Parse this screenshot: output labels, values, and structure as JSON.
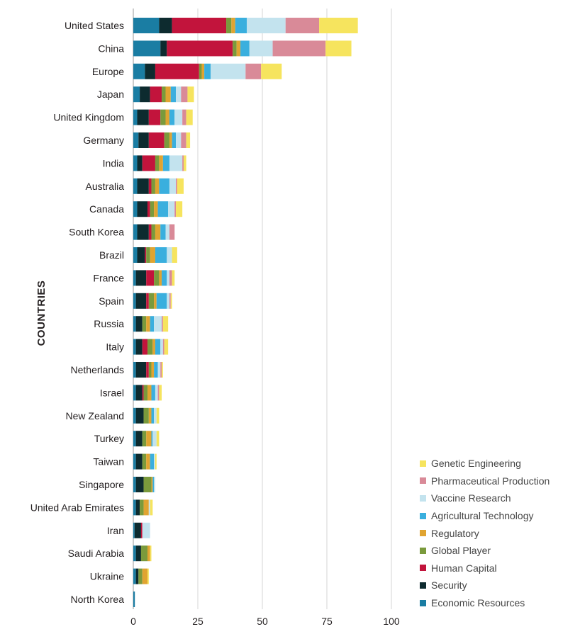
{
  "chart_data": {
    "type": "bar",
    "orientation": "horizontal",
    "stacked": true,
    "title": "",
    "xlabel": "",
    "ylabel": "COUNTRIES",
    "xlim": [
      0,
      100
    ],
    "xticks": [
      0,
      25,
      50,
      75,
      100
    ],
    "grid": true,
    "legend_position": "bottom-right",
    "categories": [
      "United States",
      "China",
      "Europe",
      "Japan",
      "United Kingdom",
      "Germany",
      "India",
      "Australia",
      "Canada",
      "South Korea",
      "Brazil",
      "France",
      "Spain",
      "Russia",
      "Italy",
      "Netherlands",
      "Israel",
      "New Zealand",
      "Turkey",
      "Taiwan",
      "Singapore",
      "United Arab Emirates",
      "Iran",
      "Saudi Arabia",
      "Ukraine",
      "North Korea"
    ],
    "series": [
      {
        "name": "Economic Resources",
        "color": "#1a7da3",
        "values": [
          10,
          10.5,
          4.5,
          2.5,
          1.5,
          2,
          1.5,
          1.5,
          1.5,
          1.5,
          1.5,
          1,
          1,
          1,
          1,
          1,
          1,
          1,
          1,
          1,
          1,
          1,
          0.5,
          1,
          1,
          0.6
        ]
      },
      {
        "name": "Security",
        "color": "#0d2b2f",
        "values": [
          5,
          2.5,
          4,
          4,
          4.5,
          4,
          2,
          4.5,
          4,
          4.5,
          3,
          4,
          4,
          2.5,
          2.5,
          4,
          2.5,
          3,
          2.5,
          2.5,
          3,
          1.5,
          2.5,
          2,
          1,
          0
        ]
      },
      {
        "name": "Human Capital",
        "color": "#c2143c",
        "values": [
          21,
          25.5,
          17,
          4.5,
          4.5,
          6,
          5,
          1,
          1,
          1,
          0.5,
          3,
          1,
          0,
          2,
          1,
          0.5,
          0,
          0,
          0,
          0,
          0,
          0.5,
          0,
          0,
          0
        ]
      },
      {
        "name": "Global Player",
        "color": "#7a9a3c",
        "values": [
          2,
          1.5,
          1,
          1.5,
          2,
          2,
          1.5,
          1.5,
          1.5,
          1.5,
          1.5,
          2,
          2,
          1.5,
          2,
          1,
          1.5,
          2,
          1.5,
          1.5,
          3,
          1.5,
          0,
          2.5,
          1.5,
          0
        ]
      },
      {
        "name": "Regulatory",
        "color": "#e0a431",
        "values": [
          1.5,
          1.5,
          1,
          2,
          1.5,
          1,
          1.5,
          1.5,
          1.5,
          2,
          2,
          1,
          1,
          1.5,
          1,
          1,
          1.5,
          1,
          2,
          1.5,
          0.5,
          2,
          0,
          1,
          2,
          0
        ]
      },
      {
        "name": "Agricultural Technology",
        "color": "#3aafde",
        "values": [
          4.5,
          3.5,
          2.5,
          2,
          2,
          1.5,
          2.5,
          4,
          4,
          2,
          4.5,
          2,
          4,
          1.5,
          2,
          1.5,
          1.5,
          1,
          0.5,
          1.5,
          0.5,
          0,
          0,
          0,
          0,
          0
        ]
      },
      {
        "name": "Vaccine Research",
        "color": "#c3e3ee",
        "values": [
          15,
          9,
          13.5,
          2,
          3,
          2,
          5,
          2.5,
          2.5,
          1.5,
          2,
          1,
          1,
          3,
          1,
          1,
          1,
          1,
          1.5,
          0.5,
          0.5,
          0.5,
          3,
          0,
          0,
          0
        ]
      },
      {
        "name": "Pharmaceutical Production",
        "color": "#d98a98",
        "values": [
          13,
          20.5,
          6,
          2.5,
          1.5,
          2,
          0.5,
          0.5,
          0.5,
          2,
          0,
          1,
          0.5,
          0.5,
          0.5,
          0.5,
          0.5,
          0,
          0,
          0,
          0,
          0,
          0,
          0,
          0,
          0
        ]
      },
      {
        "name": "Genetic Engineering",
        "color": "#f6e45e",
        "values": [
          15,
          10,
          8,
          2.5,
          2.5,
          1.5,
          1,
          2.5,
          2.5,
          0,
          2,
          1,
          0.5,
          2,
          1.5,
          0.5,
          1,
          1,
          1,
          0.5,
          0,
          1,
          0,
          0.5,
          0.5,
          0
        ]
      }
    ]
  }
}
